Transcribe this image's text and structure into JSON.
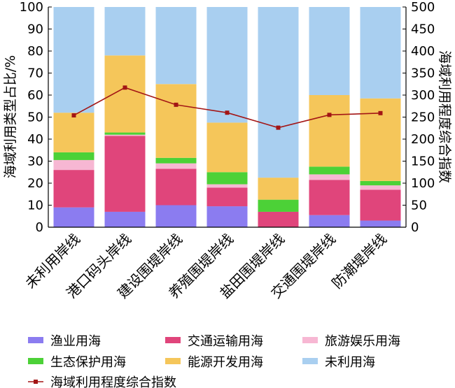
{
  "chart_data": {
    "type": "bar",
    "stacked": true,
    "title": "",
    "xlabel": "",
    "ylabel": "海域利用类型占比/%",
    "y2label": "海域利用程度综合指数",
    "ylim": [
      0,
      100
    ],
    "y2lim": [
      0,
      500
    ],
    "yticks": [
      "0",
      "10",
      "20",
      "30",
      "40",
      "50",
      "60",
      "70",
      "80",
      "90",
      "100"
    ],
    "y2ticks": [
      "0",
      "50",
      "100",
      "150",
      "200",
      "250",
      "300",
      "350",
      "400",
      "450",
      "500"
    ],
    "grid": false,
    "legend_position": "bottom",
    "categories": [
      "未利用岸线",
      "港口码头岸线",
      "建设围堤岸线",
      "养殖围堤岸线",
      "盐田围堤岸线",
      "交通围堤岸线",
      "防潮堤岸线"
    ],
    "series": [
      {
        "name": "渔业用海",
        "color": "#8b7cf0",
        "values": [
          9,
          7,
          10,
          9.5,
          0,
          5.5,
          3
        ]
      },
      {
        "name": "交通运输用海",
        "color": "#e0457b",
        "values": [
          17,
          34.5,
          16.5,
          8.5,
          7,
          16,
          14
        ]
      },
      {
        "name": "旅游娱乐用海",
        "color": "#f7b7d3",
        "values": [
          4.5,
          0.5,
          2.5,
          1.5,
          0,
          2.5,
          2
        ]
      },
      {
        "name": "生态保护用海",
        "color": "#4cd137",
        "values": [
          3.5,
          1,
          2.5,
          5.5,
          5.5,
          3.5,
          2
        ]
      },
      {
        "name": "能源开发用海",
        "color": "#f5c65a",
        "values": [
          18,
          35,
          33.5,
          22.5,
          10,
          32.5,
          37.5
        ]
      },
      {
        "name": "未利用海",
        "color": "#a9cff0",
        "values": [
          48,
          22,
          35,
          52.5,
          77.5,
          40,
          41.5
        ]
      }
    ],
    "line_series": {
      "name": "海域利用程度综合指数",
      "color": "#a31515",
      "axis": "right",
      "values": [
        254,
        317,
        278,
        260,
        226,
        255,
        259
      ]
    }
  }
}
